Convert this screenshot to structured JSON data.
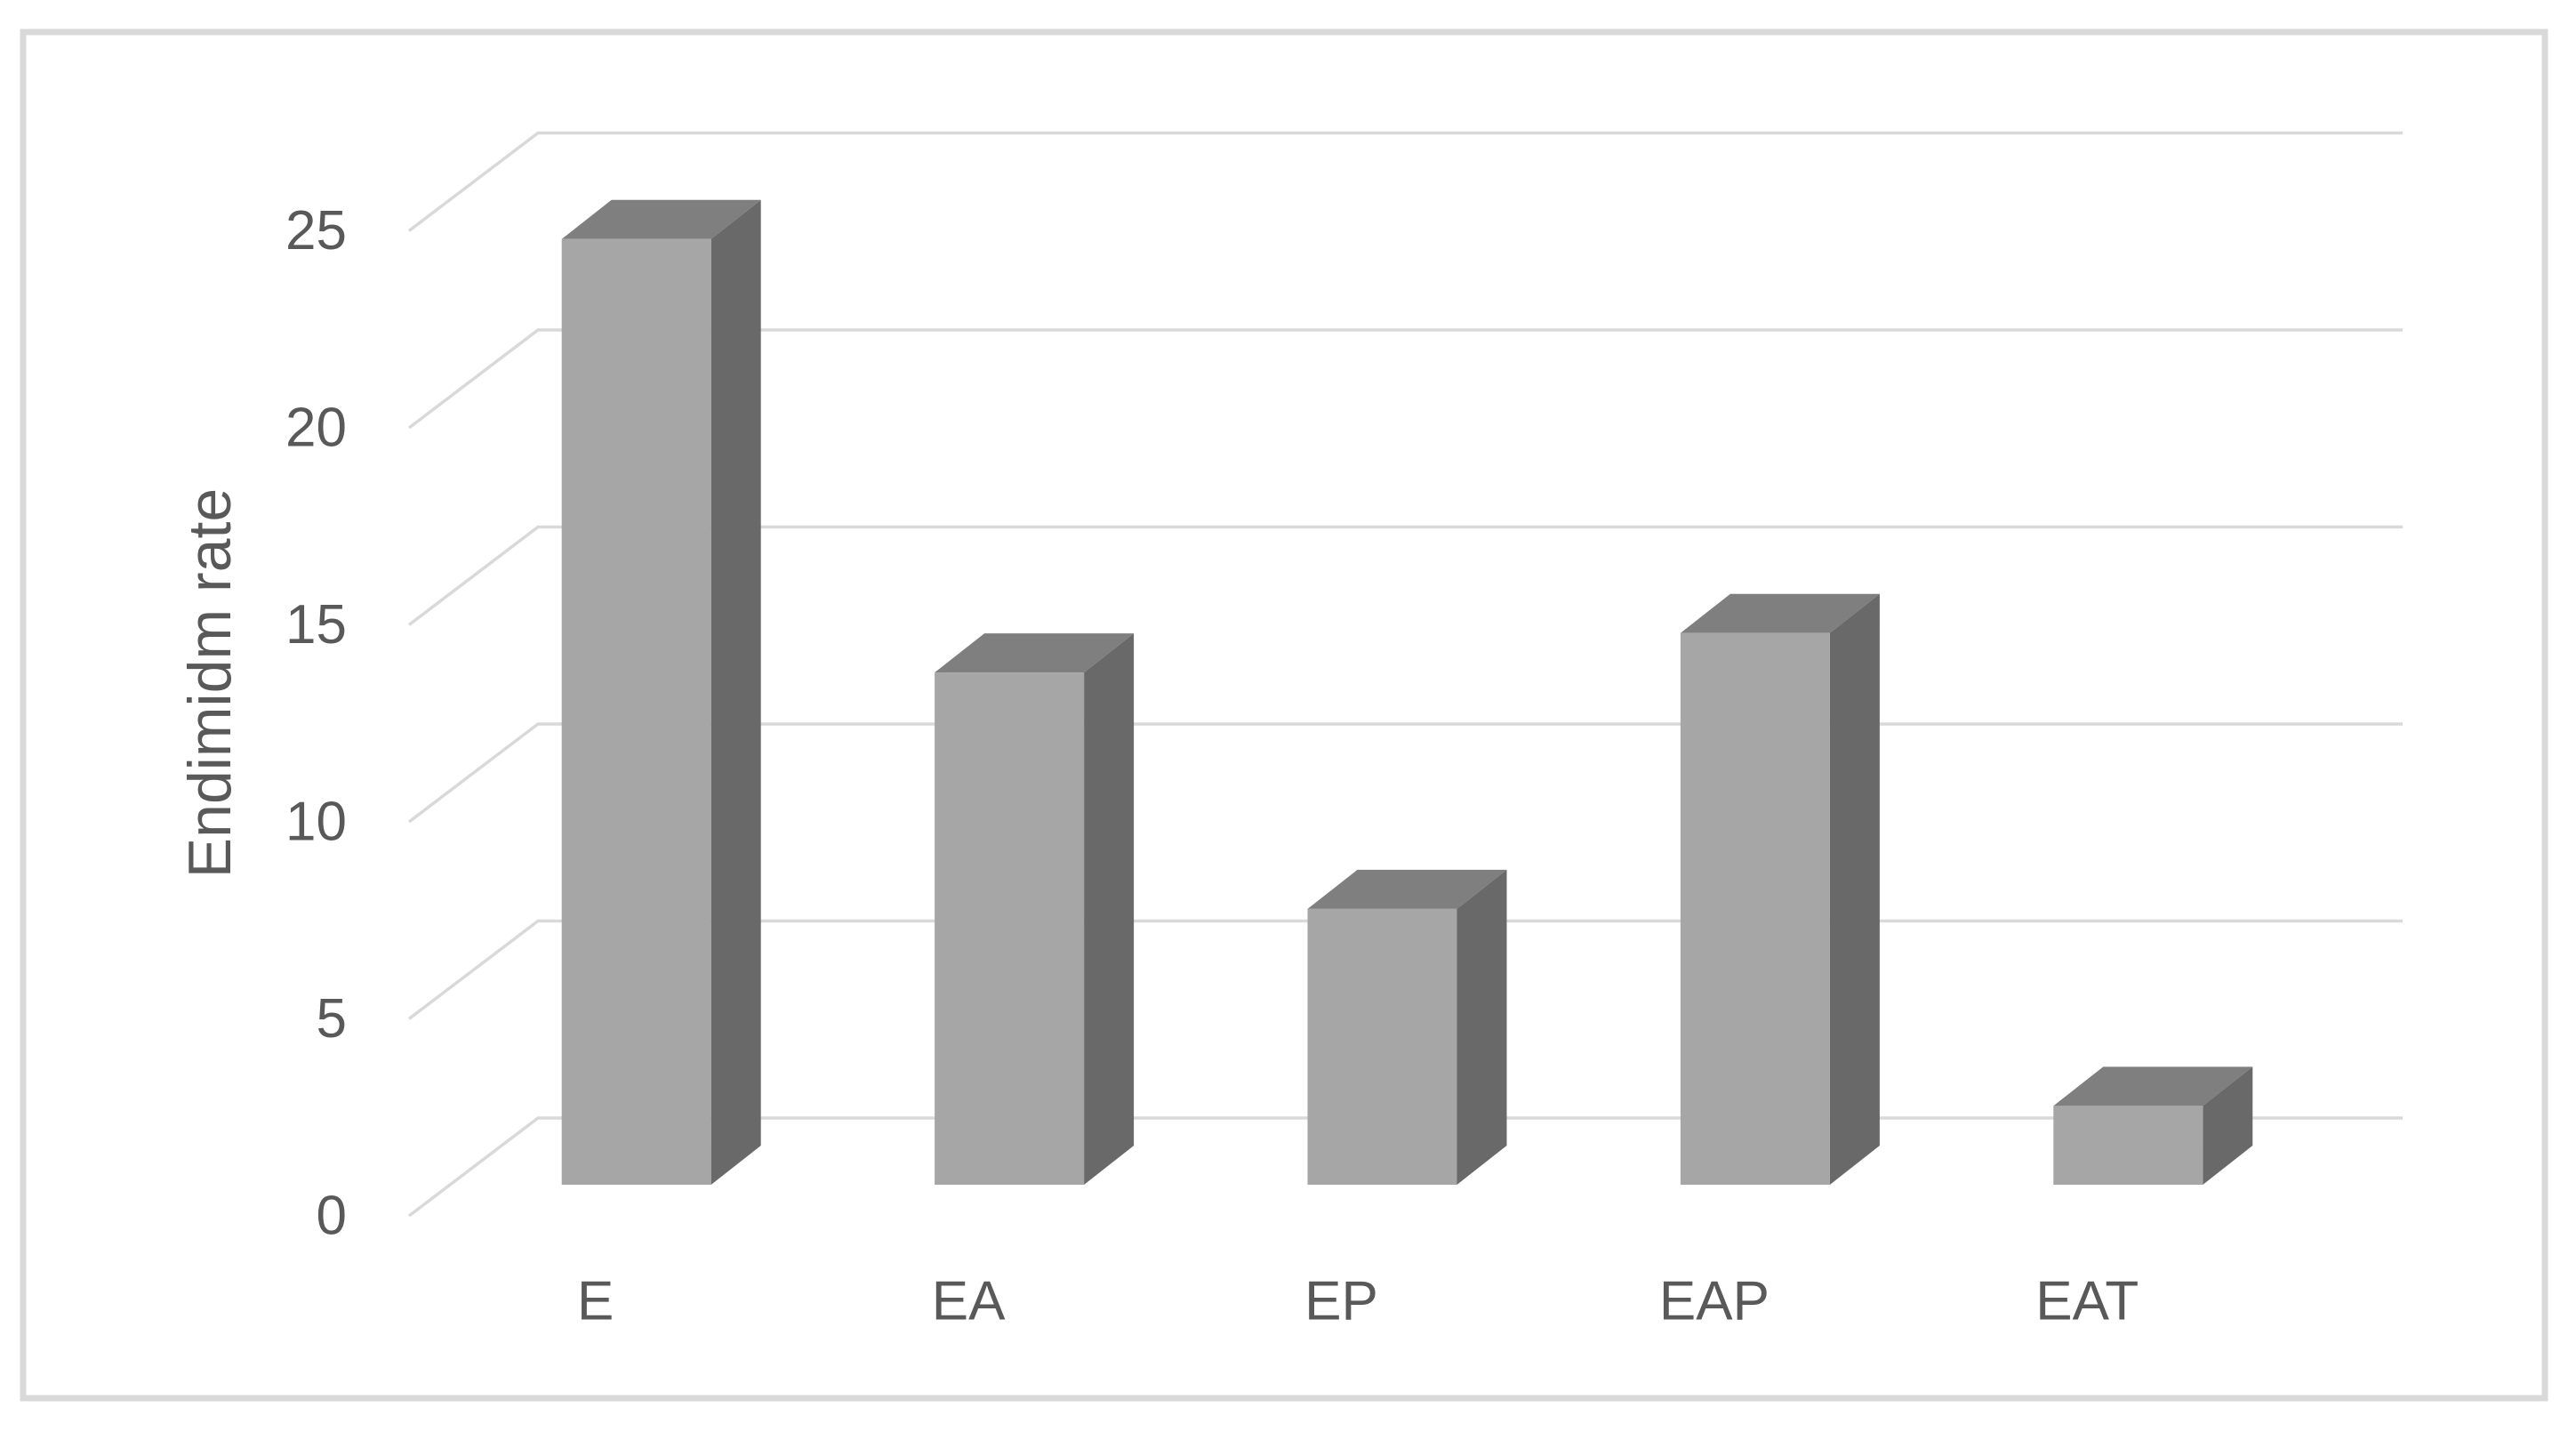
{
  "chart_data": {
    "type": "bar",
    "style": "3d-column",
    "title": "",
    "xlabel": "",
    "ylabel": "Endimidm rate",
    "categories": [
      "E",
      "EA",
      "EP",
      "EAP",
      "EAT"
    ],
    "values": [
      24,
      13,
      7,
      14,
      2
    ],
    "series": [
      {
        "name": "Endimidm rate",
        "values": [
          24,
          13,
          7,
          14,
          2
        ]
      }
    ],
    "yticks": [
      0,
      5,
      10,
      15,
      20,
      25
    ],
    "ylim": [
      0,
      25
    ],
    "grid": true,
    "legend": false,
    "colors": {
      "bar_front": "#a6a6a6",
      "bar_side": "#696969",
      "bar_top": "#7f7f7f",
      "gridline": "#d9d9d9",
      "frame_border": "#d9d9d9",
      "axis_text": "#595959",
      "background": "#ffffff"
    }
  }
}
